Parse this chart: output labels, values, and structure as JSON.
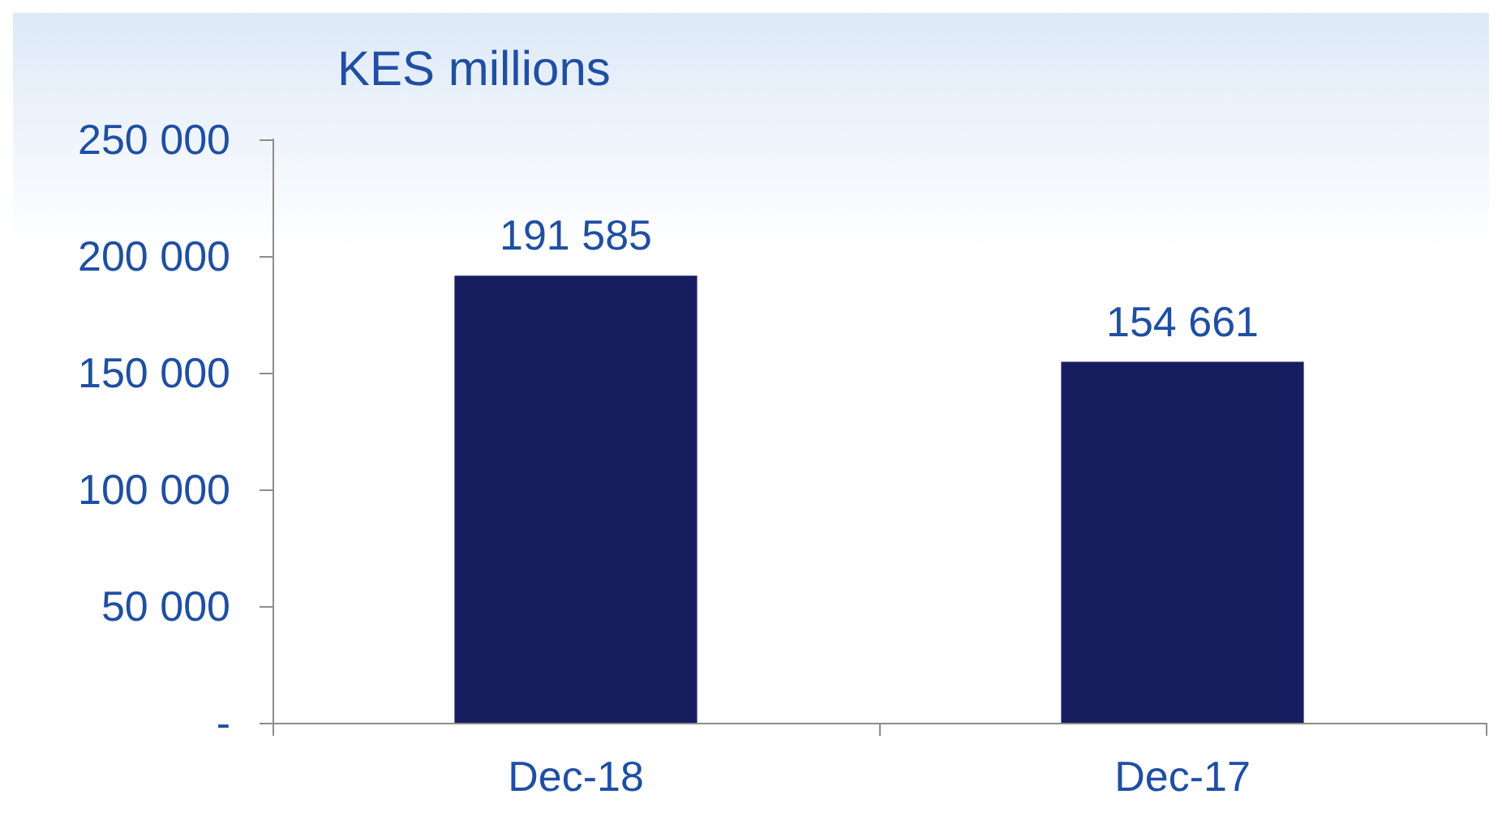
{
  "chart_data": {
    "type": "bar",
    "ylabel": "KES millions",
    "categories": [
      "Dec-18",
      "Dec-17"
    ],
    "values": [
      191585,
      154661
    ],
    "color": "#171e5f",
    "value_labels": [
      "191 585",
      "154 661"
    ],
    "ylim": [
      0,
      250000
    ],
    "yticks": [
      {
        "value": 0,
        "label": "-"
      },
      {
        "value": 50000,
        "label": "50 000"
      },
      {
        "value": 100000,
        "label": "100 000"
      },
      {
        "value": 150000,
        "label": "150 000"
      },
      {
        "value": 200000,
        "label": "200 000"
      },
      {
        "value": 250000,
        "label": "250 000"
      }
    ],
    "grid": false
  }
}
